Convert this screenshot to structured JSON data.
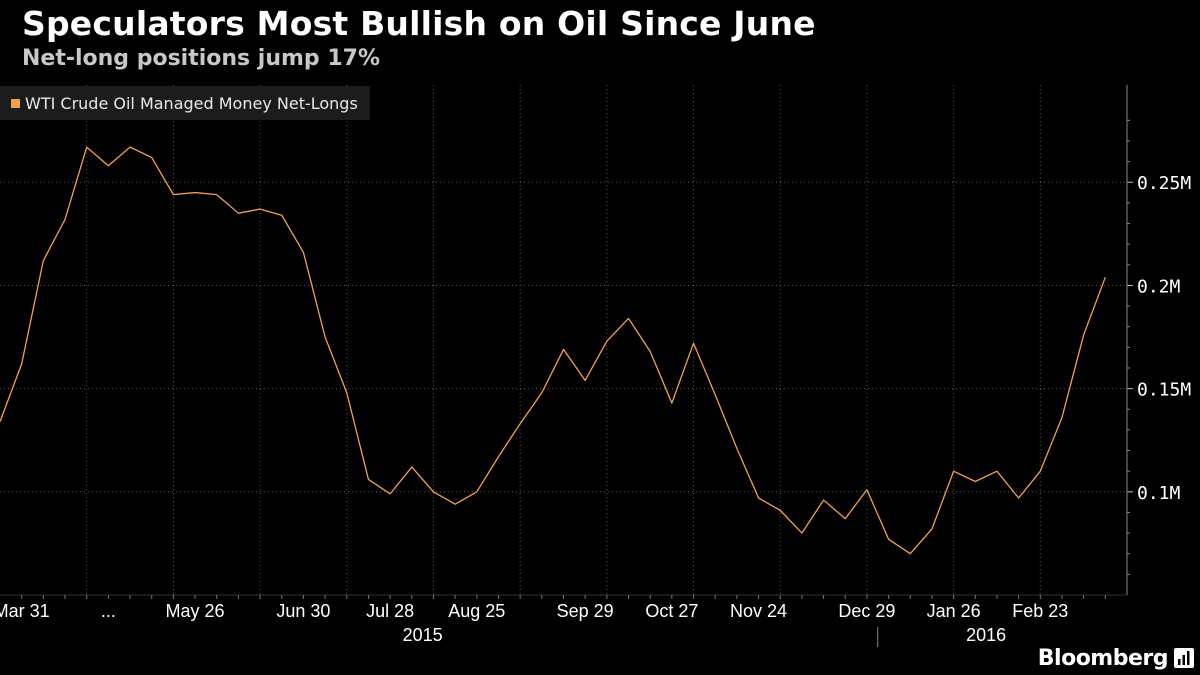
{
  "header": {
    "title": "Speculators Most Bullish on Oil Since June",
    "subtitle": "Net-long positions jump 17%"
  },
  "brand": {
    "name": "Bloomberg",
    "icon": "bloomberg-terminal-icon"
  },
  "colors": {
    "line": "#f4a24a",
    "background": "#000000",
    "grid": "#5a5a5a"
  },
  "chart_data": {
    "type": "line",
    "title": "Speculators Most Bullish on Oil Since June",
    "subtitle": "Net-long positions jump 17%",
    "legend": {
      "position": "top-left",
      "entries": [
        "WTI Crude Oil Managed Money Net-Longs"
      ]
    },
    "grid": true,
    "y_axis": {
      "side": "right",
      "ticks": [
        0.1,
        0.15,
        0.2,
        0.25
      ],
      "tick_labels": [
        "0.1M",
        "0.15M",
        "0.2M",
        "0.25M"
      ],
      "ylim": [
        0.05,
        0.285
      ]
    },
    "x_axis": {
      "tick_labels": [
        "Mar 31",
        "...",
        "May 26",
        "Jun 30",
        "Jul 28",
        "Aug 25",
        "Sep 29",
        "Oct 27",
        "Nov 24",
        "Dec 29",
        "Jan 26",
        "Feb 23"
      ],
      "tick_weeks": [
        1,
        5,
        9,
        14,
        18,
        22,
        27,
        31,
        35,
        40,
        44,
        48
      ],
      "year_labels": [
        "2015",
        "2016"
      ],
      "xlim_weeks": [
        0,
        52
      ]
    },
    "series": [
      {
        "name": "WTI Crude Oil Managed Money Net-Longs",
        "values": [
          0.134,
          0.162,
          0.212,
          0.232,
          0.267,
          0.258,
          0.267,
          0.262,
          0.244,
          0.245,
          0.244,
          0.235,
          0.237,
          0.234,
          0.216,
          0.175,
          0.148,
          0.106,
          0.099,
          0.112,
          0.1,
          0.094,
          0.1,
          0.117,
          0.133,
          0.148,
          0.169,
          0.154,
          0.173,
          0.184,
          0.168,
          0.143,
          0.172,
          0.147,
          0.121,
          0.097,
          0.091,
          0.08,
          0.096,
          0.087,
          0.101,
          0.077,
          0.07,
          0.082,
          0.11,
          0.105,
          0.11,
          0.097,
          0.11,
          0.136,
          0.176,
          0.204
        ]
      }
    ]
  }
}
